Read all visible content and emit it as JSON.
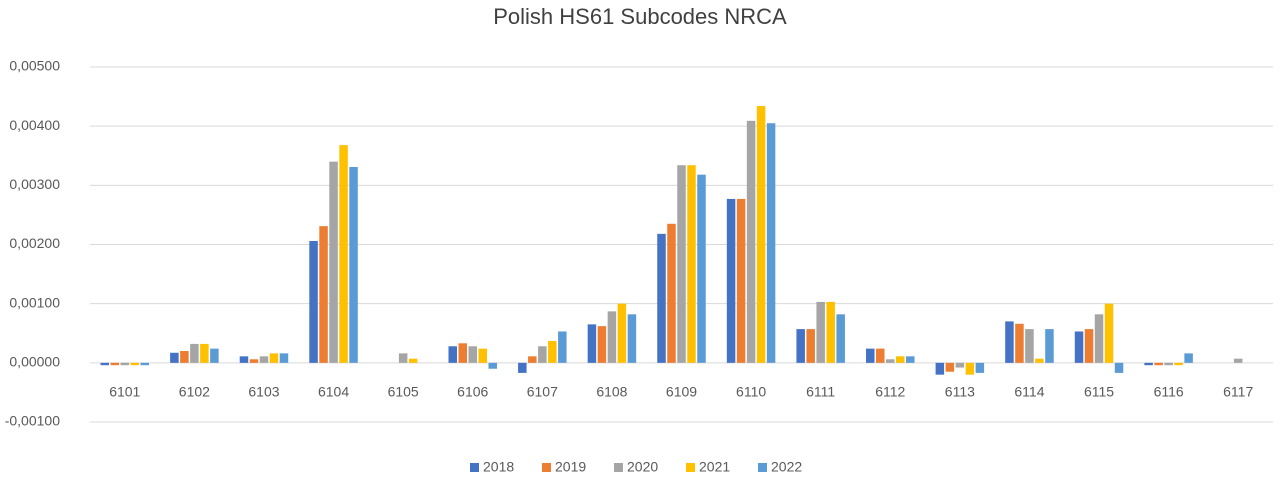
{
  "chart_data": {
    "type": "bar",
    "title": "Polish HS61 Subcodes NRCA",
    "categories": [
      "6101",
      "6102",
      "6103",
      "6104",
      "6105",
      "6106",
      "6107",
      "6108",
      "6109",
      "6110",
      "6111",
      "6112",
      "6113",
      "6114",
      "6115",
      "6116",
      "6117"
    ],
    "series": [
      {
        "name": "2018",
        "color": "#4472c4",
        "values": [
          -4e-05,
          0.00017,
          0.00011,
          0.00206,
          0,
          0.00028,
          -0.00017,
          0.00065,
          0.00218,
          0.00277,
          0.00057,
          0.00024,
          -0.0002,
          0.0007,
          0.00053,
          -4e-05,
          0
        ]
      },
      {
        "name": "2019",
        "color": "#ed7d31",
        "values": [
          -4e-05,
          0.0002,
          6e-05,
          0.00231,
          0,
          0.00033,
          0.00011,
          0.00062,
          0.00235,
          0.00277,
          0.00057,
          0.00024,
          -0.00015,
          0.00066,
          0.00057,
          -4e-05,
          0
        ]
      },
      {
        "name": "2020",
        "color": "#a5a5a5",
        "values": [
          -4e-05,
          0.00032,
          0.00011,
          0.0034,
          0.00016,
          0.00028,
          0.00028,
          0.00087,
          0.00334,
          0.00409,
          0.00103,
          6e-05,
          -8e-05,
          0.00057,
          0.00082,
          -4e-05,
          7e-05
        ]
      },
      {
        "name": "2021",
        "color": "#ffc000",
        "values": [
          -4e-05,
          0.00032,
          0.00016,
          0.00368,
          7e-05,
          0.00024,
          0.00037,
          0.001,
          0.00334,
          0.00434,
          0.00103,
          0.00011,
          -0.0002,
          7e-05,
          0.001,
          -4e-05,
          0
        ]
      },
      {
        "name": "2022",
        "color": "#5b9bd5",
        "values": [
          -4e-05,
          0.00024,
          0.00016,
          0.00331,
          0,
          -0.0001,
          0.00053,
          0.00082,
          0.00318,
          0.00405,
          0.00082,
          0.00011,
          -0.00017,
          0.00057,
          -0.00017,
          0.00016,
          0
        ]
      }
    ],
    "ylim": [
      -0.001,
      0.005
    ],
    "yticks": [
      {
        "value": -0.001,
        "label": "-0,00100"
      },
      {
        "value": 0,
        "label": "0,00000"
      },
      {
        "value": 0.001,
        "label": "0,00100"
      },
      {
        "value": 0.002,
        "label": "0,00200"
      },
      {
        "value": 0.003,
        "label": "0,00300"
      },
      {
        "value": 0.004,
        "label": "0,00400"
      },
      {
        "value": 0.005,
        "label": "0,00500"
      }
    ],
    "grid": true,
    "legend": "bottom"
  }
}
